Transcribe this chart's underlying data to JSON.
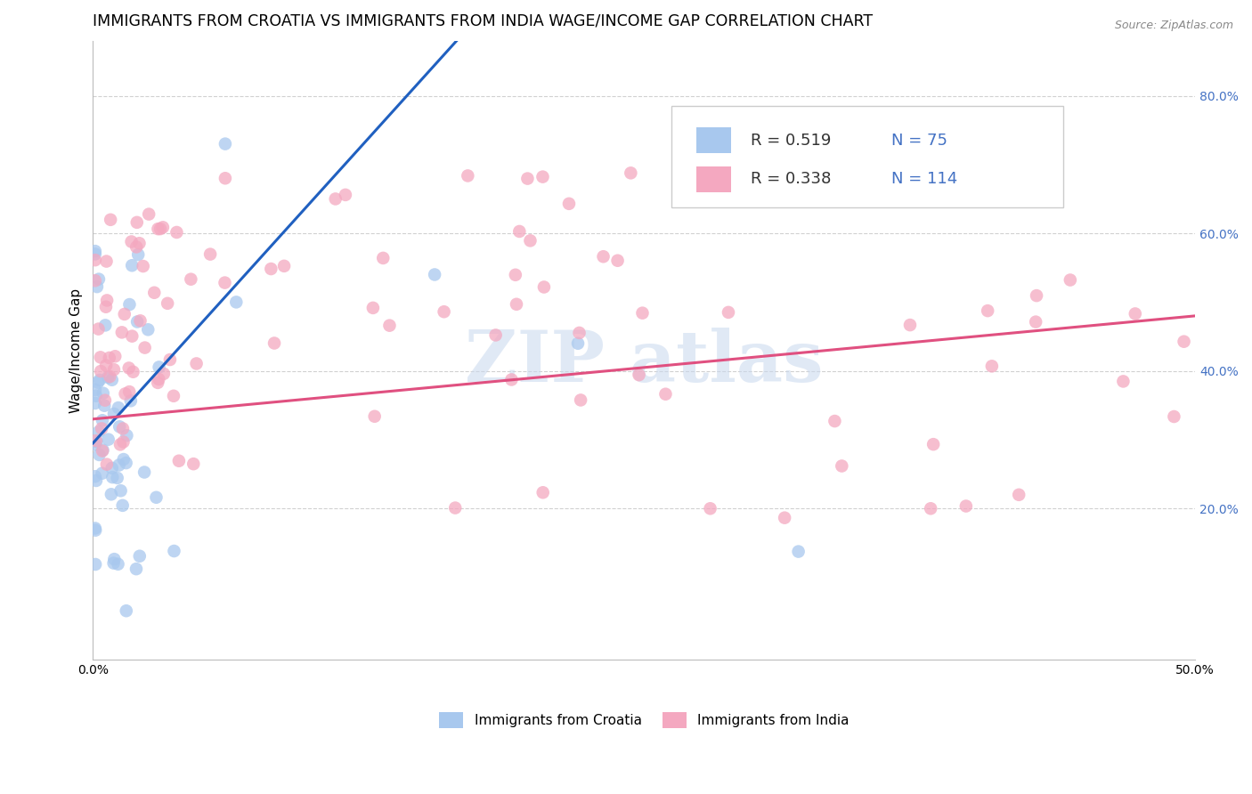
{
  "title": "IMMIGRANTS FROM CROATIA VS IMMIGRANTS FROM INDIA WAGE/INCOME GAP CORRELATION CHART",
  "source": "Source: ZipAtlas.com",
  "ylabel": "Wage/Income Gap",
  "y_ticks": [
    "20.0%",
    "40.0%",
    "60.0%",
    "80.0%"
  ],
  "y_tick_vals": [
    0.2,
    0.4,
    0.6,
    0.8
  ],
  "x_ticks": [
    0.0,
    0.1,
    0.2,
    0.3,
    0.4,
    0.5
  ],
  "x_tick_labels": [
    "0.0%",
    "",
    "",
    "",
    "",
    "50.0%"
  ],
  "xlim": [
    0.0,
    0.5
  ],
  "ylim": [
    -0.02,
    0.88
  ],
  "croatia_R": 0.519,
  "croatia_N": 75,
  "india_R": 0.338,
  "india_N": 114,
  "croatia_color": "#A8C8EE",
  "india_color": "#F4A8C0",
  "trendline_croatia_color": "#2060C0",
  "trendline_india_color": "#E05080",
  "background_color": "#FFFFFF",
  "grid_color": "#CCCCCC",
  "legend_text_color": "#4472C4",
  "watermark_color": "#C8D8EE",
  "title_fontsize": 12.5,
  "axis_fontsize": 11,
  "tick_fontsize": 10,
  "legend_R_color": "#333333",
  "legend_N_color": "#4472C4",
  "croatia_trendline_x": [
    0.0,
    0.165
  ],
  "croatia_trendline_y": [
    0.295,
    0.88
  ],
  "india_trendline_x": [
    0.0,
    0.5
  ],
  "india_trendline_y": [
    0.33,
    0.48
  ]
}
